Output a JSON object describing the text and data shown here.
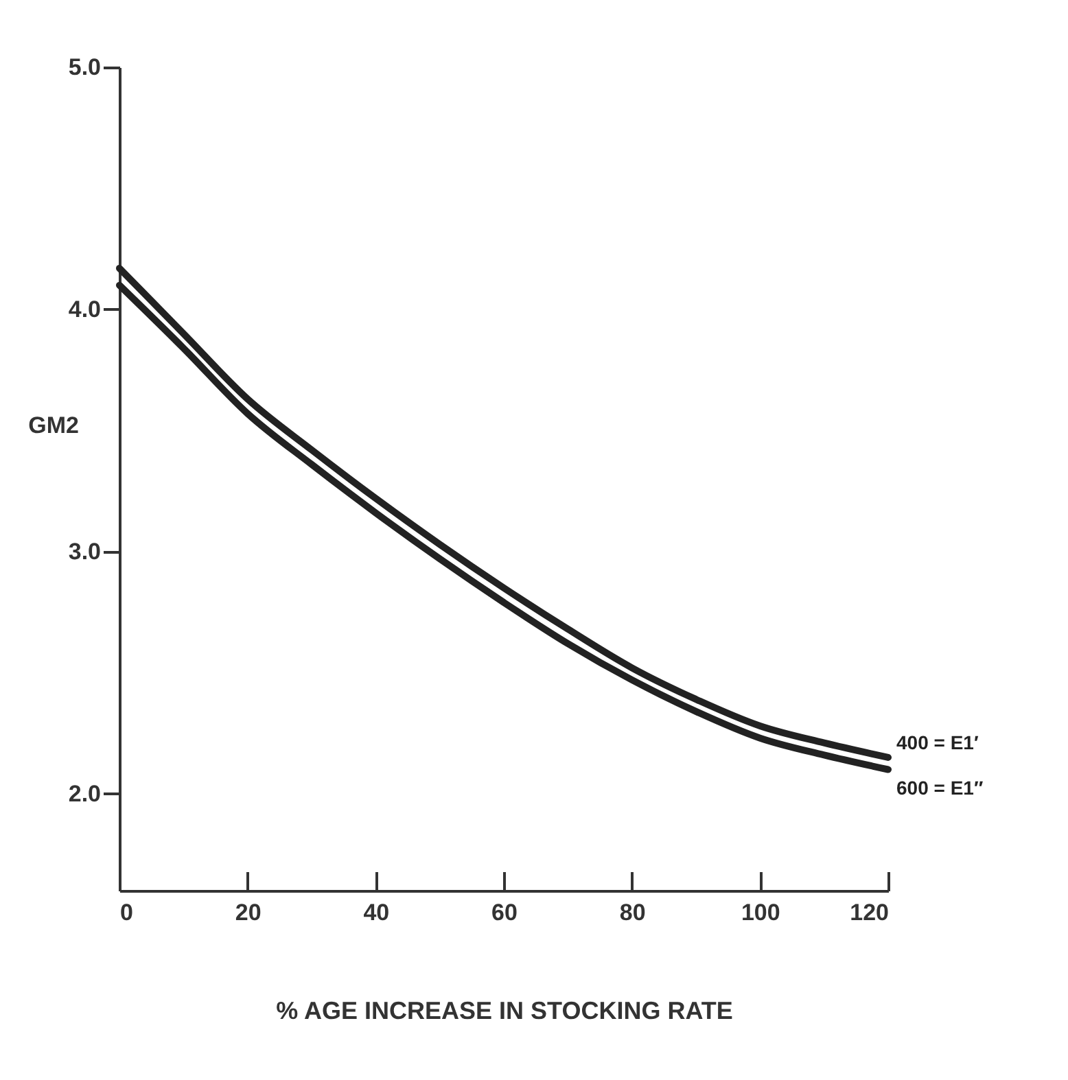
{
  "chart_data": {
    "type": "line",
    "xlabel": "% AGE INCREASE IN STOCKING RATE",
    "ylabel": "GM2",
    "x": [
      0,
      10,
      20,
      30,
      40,
      50,
      60,
      70,
      80,
      90,
      100,
      110,
      120
    ],
    "xlim": [
      0,
      120
    ],
    "xticks": [
      0,
      20,
      40,
      60,
      80,
      100,
      120
    ],
    "ylim": [
      1.6,
      5.0
    ],
    "yticks": [
      {
        "value": 2,
        "label": "2.0"
      },
      {
        "value": 3,
        "label": "3.0"
      },
      {
        "value": 4,
        "label": "4.0"
      },
      {
        "value": 5,
        "label": "5.0"
      }
    ],
    "grid": false,
    "legend": false,
    "marker": "none",
    "line_style": "solid",
    "series": [
      {
        "name": "400 = E1′",
        "color": "#222222",
        "values": [
          4.17,
          3.9,
          3.63,
          3.42,
          3.22,
          3.03,
          2.85,
          2.68,
          2.52,
          2.39,
          2.28,
          2.21,
          2.15
        ]
      },
      {
        "name": "600 = E1″",
        "color": "#222222",
        "values": [
          4.1,
          3.84,
          3.57,
          3.36,
          3.16,
          2.97,
          2.79,
          2.62,
          2.47,
          2.34,
          2.23,
          2.16,
          2.1
        ]
      }
    ]
  }
}
